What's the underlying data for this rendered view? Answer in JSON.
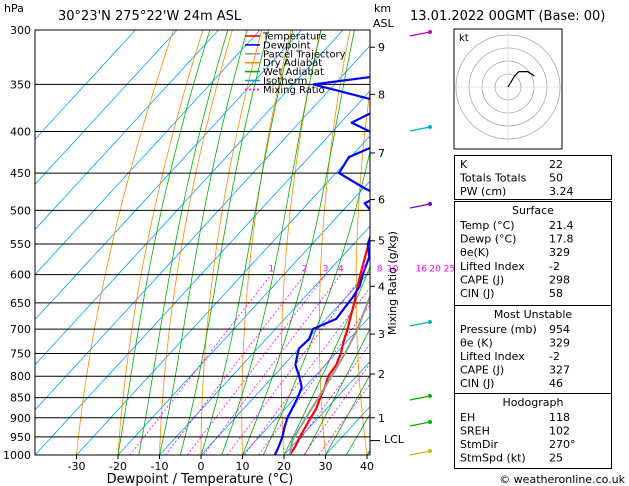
{
  "header": {
    "location": "30°23'N  275°22'W  24m  ASL",
    "valid_time": "13.01.2022  00GMT  (Base: 00)",
    "hpa_unit": "hPa",
    "km_unit": "km",
    "asl_unit": "ASL"
  },
  "footer": {
    "x_axis_title": "Dewpoint / Temperature (°C)",
    "copyright": "© weatheronline.co.uk"
  },
  "right_axis_title": "Mixing Ratio (g/kg)",
  "lcl_label": "LCL",
  "hodograph": {
    "unit_label": "kt",
    "rings": [
      10,
      20,
      30,
      40
    ]
  },
  "legend": [
    {
      "label": "Temperature",
      "color": "#ff0000",
      "dash": ""
    },
    {
      "label": "Dewpoint",
      "color": "#0000ff",
      "dash": ""
    },
    {
      "label": "Parcel Trajectory",
      "color": "#999999",
      "dash": ""
    },
    {
      "label": "Dry Adiabat",
      "color": "#ff8c00",
      "dash": ""
    },
    {
      "label": "Wet Adiabat",
      "color": "#00b000",
      "dash": ""
    },
    {
      "label": "Isotherm",
      "color": "#00a0ff",
      "dash": ""
    },
    {
      "label": "Mixing Ratio",
      "color": "#ff00ff",
      "dash": "2,2"
    }
  ],
  "indices": {
    "basic": [
      {
        "label": "K",
        "value": "22"
      },
      {
        "label": "Totals Totals",
        "value": "50"
      },
      {
        "label": "PW (cm)",
        "value": "3.24"
      }
    ],
    "surface": {
      "title": "Surface",
      "rows": [
        {
          "label": "Temp (°C)",
          "value": "21.4"
        },
        {
          "label": "Dewp (°C)",
          "value": "17.8"
        },
        {
          "label": "θe(K)",
          "value": "329"
        },
        {
          "label": "Lifted Index",
          "value": "-2"
        },
        {
          "label": "CAPE (J)",
          "value": "298"
        },
        {
          "label": "CIN (J)",
          "value": "58"
        }
      ]
    },
    "most_unstable": {
      "title": "Most Unstable",
      "rows": [
        {
          "label": "Pressure (mb)",
          "value": "954"
        },
        {
          "label": "θe (K)",
          "value": "329"
        },
        {
          "label": "Lifted Index",
          "value": "-2"
        },
        {
          "label": "CAPE (J)",
          "value": "327"
        },
        {
          "label": "CIN (J)",
          "value": "46"
        }
      ]
    },
    "hodograph": {
      "title": "Hodograph",
      "rows": [
        {
          "label": "EH",
          "value": "118"
        },
        {
          "label": "SREH",
          "value": "102"
        },
        {
          "label": "StmDir",
          "value": "270°"
        },
        {
          "label": "StmSpd (kt)",
          "value": "25"
        }
      ]
    }
  },
  "chart_data": {
    "type": "line",
    "title": "30°23'N  275°22'W  24m  ASL",
    "xlabel": "Dewpoint / Temperature (°C)",
    "ylabel": "hPa",
    "xlim": [
      -40,
      40
    ],
    "ylim": [
      1000,
      300
    ],
    "x_ticks": [
      -30,
      -20,
      -10,
      0,
      10,
      20,
      30,
      40
    ],
    "pressure_levels": [
      300,
      350,
      400,
      450,
      500,
      550,
      600,
      650,
      700,
      750,
      800,
      850,
      900,
      950,
      1000
    ],
    "km_ticks": [
      {
        "km": 1,
        "p": 900
      },
      {
        "km": 2,
        "p": 795
      },
      {
        "km": 3,
        "p": 710
      },
      {
        "km": 4,
        "p": 620
      },
      {
        "km": 5,
        "p": 545
      },
      {
        "km": 6,
        "p": 485
      },
      {
        "km": 7,
        "p": 425
      },
      {
        "km": 8,
        "p": 360
      },
      {
        "km": 9,
        "p": 315
      }
    ],
    "lcl_p": 960,
    "mixing_ratio_labels": [
      "1",
      "2",
      "3",
      "4",
      "6",
      "8",
      "10",
      "16",
      "20",
      "25"
    ],
    "mixing_ratio_values": [
      1,
      2,
      3,
      4,
      6,
      8,
      10,
      16,
      20,
      25
    ],
    "series": [
      {
        "name": "Temperature",
        "color": "#ff0000",
        "points": [
          [
            1000,
            21.4
          ],
          [
            975,
            20.8
          ],
          [
            950,
            19.8
          ],
          [
            925,
            19.0
          ],
          [
            900,
            18.2
          ],
          [
            875,
            17.4
          ],
          [
            850,
            16.0
          ],
          [
            825,
            14.8
          ],
          [
            800,
            13.2
          ],
          [
            775,
            12.6
          ],
          [
            750,
            11.2
          ],
          [
            725,
            9.2
          ],
          [
            700,
            7.4
          ],
          [
            650,
            3.2
          ],
          [
            600,
            -1.6
          ],
          [
            550,
            -6.4
          ],
          [
            500,
            -11.4
          ],
          [
            450,
            -17.4
          ],
          [
            400,
            -24.0
          ],
          [
            350,
            -31.6
          ],
          [
            300,
            -40.0
          ]
        ]
      },
      {
        "name": "Dewpoint",
        "color": "#0000ff",
        "points": [
          [
            1000,
            17.8
          ],
          [
            975,
            16.8
          ],
          [
            950,
            15.6
          ],
          [
            925,
            14.0
          ],
          [
            900,
            12.6
          ],
          [
            875,
            11.6
          ],
          [
            850,
            10.6
          ],
          [
            825,
            9.2
          ],
          [
            800,
            6.2
          ],
          [
            775,
            2.8
          ],
          [
            760,
            1.6
          ],
          [
            740,
            0.0
          ],
          [
            720,
            0.4
          ],
          [
            700,
            -1.0
          ],
          [
            680,
            2.4
          ],
          [
            660,
            2.0
          ],
          [
            640,
            1.6
          ],
          [
            620,
            0.8
          ],
          [
            600,
            -1.0
          ],
          [
            570,
            -3.4
          ],
          [
            550,
            -6.6
          ],
          [
            530,
            -8.4
          ],
          [
            510,
            -10.4
          ],
          [
            490,
            -16.4
          ],
          [
            480,
            -14.2
          ],
          [
            470,
            -19.6
          ],
          [
            450,
            -29.2
          ],
          [
            430,
            -30.4
          ],
          [
            410,
            -24.8
          ],
          [
            390,
            -37.4
          ],
          [
            370,
            -32.4
          ],
          [
            350,
            -55.0
          ],
          [
            340,
            -38.4
          ],
          [
            320,
            -39.0
          ],
          [
            310,
            -40.0
          ],
          [
            300,
            -40.0
          ]
        ]
      },
      {
        "name": "Parcel Trajectory",
        "color": "#999999",
        "points": [
          [
            1000,
            21.4
          ],
          [
            960,
            18.8
          ],
          [
            900,
            17.0
          ],
          [
            850,
            15.6
          ],
          [
            800,
            14.0
          ],
          [
            750,
            12.2
          ],
          [
            700,
            9.8
          ],
          [
            650,
            6.4
          ],
          [
            600,
            2.8
          ],
          [
            550,
            -1.8
          ],
          [
            500,
            -7.2
          ],
          [
            450,
            -13.8
          ],
          [
            400,
            -21.4
          ],
          [
            350,
            -31.0
          ],
          [
            300,
            -42.0
          ]
        ]
      }
    ],
    "hodograph_points": [
      {
        "u": 0,
        "v": 0
      },
      {
        "u": 3,
        "v": 5
      },
      {
        "u": 5,
        "v": 7
      },
      {
        "u": 9,
        "v": 7
      },
      {
        "u": 12,
        "v": 5
      }
    ]
  }
}
